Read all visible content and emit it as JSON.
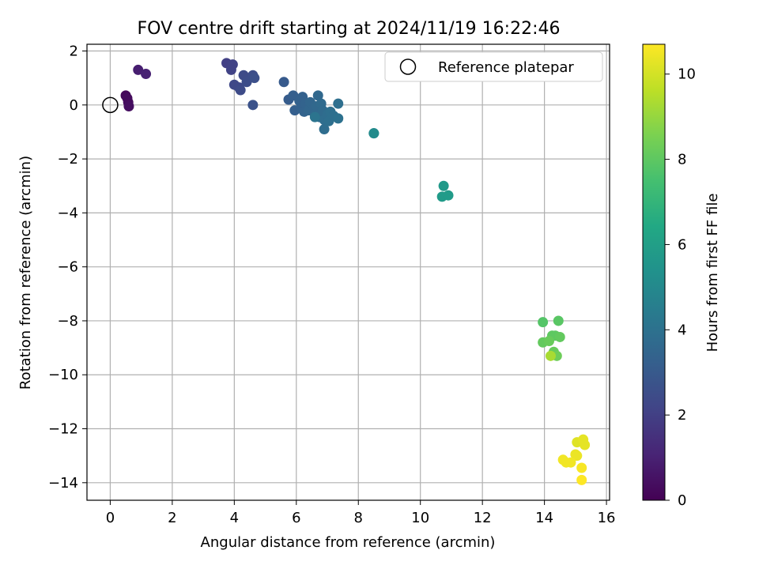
{
  "chart_data": {
    "type": "scatter",
    "title": "FOV centre drift starting at 2024/11/19 16:22:46",
    "xlabel": "Angular distance from reference (arcmin)",
    "ylabel": "Rotation from reference (arcmin)",
    "xlim": [
      -0.75,
      16.1
    ],
    "ylim": [
      -14.65,
      2.25
    ],
    "xticks": [
      0,
      2,
      4,
      6,
      8,
      10,
      12,
      14,
      16
    ],
    "yticks": [
      -14,
      -12,
      -10,
      -8,
      -6,
      -4,
      -2,
      0,
      2
    ],
    "grid": true,
    "legend": {
      "position": "upper-right",
      "entries": [
        "Reference platepar"
      ]
    },
    "reference_point": {
      "x": 0,
      "y": 0,
      "label": "Reference platepar"
    },
    "colorbar": {
      "label": "Hours from first FF file",
      "min": 0,
      "max": 10.7,
      "ticks": [
        0,
        2,
        4,
        6,
        8,
        10
      ],
      "colormap": "viridis"
    },
    "points": [
      {
        "x": 0.5,
        "y": 0.35,
        "c": 0.2
      },
      {
        "x": 0.55,
        "y": 0.25,
        "c": 0.3
      },
      {
        "x": 0.58,
        "y": 0.1,
        "c": 0.3
      },
      {
        "x": 0.6,
        "y": -0.05,
        "c": 0.4
      },
      {
        "x": 0.9,
        "y": 1.3,
        "c": 0.9
      },
      {
        "x": 1.15,
        "y": 1.15,
        "c": 1.0
      },
      {
        "x": 3.75,
        "y": 1.55,
        "c": 2.0
      },
      {
        "x": 3.95,
        "y": 1.5,
        "c": 2.1
      },
      {
        "x": 3.9,
        "y": 1.3,
        "c": 2.1
      },
      {
        "x": 4.0,
        "y": 0.75,
        "c": 2.3
      },
      {
        "x": 4.15,
        "y": 0.65,
        "c": 2.3
      },
      {
        "x": 4.2,
        "y": 0.55,
        "c": 2.4
      },
      {
        "x": 4.3,
        "y": 1.1,
        "c": 2.4
      },
      {
        "x": 4.4,
        "y": 0.85,
        "c": 2.5
      },
      {
        "x": 4.6,
        "y": 1.1,
        "c": 2.5
      },
      {
        "x": 4.65,
        "y": 1.0,
        "c": 2.6
      },
      {
        "x": 4.6,
        "y": 0.0,
        "c": 2.7
      },
      {
        "x": 5.6,
        "y": 0.85,
        "c": 3.0
      },
      {
        "x": 5.75,
        "y": 0.2,
        "c": 3.1
      },
      {
        "x": 5.9,
        "y": 0.35,
        "c": 3.2
      },
      {
        "x": 5.95,
        "y": -0.2,
        "c": 3.2
      },
      {
        "x": 6.1,
        "y": 0.15,
        "c": 3.3
      },
      {
        "x": 6.15,
        "y": -0.1,
        "c": 3.3
      },
      {
        "x": 6.2,
        "y": 0.3,
        "c": 3.3
      },
      {
        "x": 6.25,
        "y": -0.25,
        "c": 3.4
      },
      {
        "x": 6.3,
        "y": 0.05,
        "c": 3.4
      },
      {
        "x": 6.4,
        "y": -0.2,
        "c": 3.5
      },
      {
        "x": 6.45,
        "y": 0.1,
        "c": 3.5
      },
      {
        "x": 6.55,
        "y": -0.15,
        "c": 3.5
      },
      {
        "x": 6.6,
        "y": -0.35,
        "c": 3.6
      },
      {
        "x": 6.65,
        "y": -0.05,
        "c": 3.6
      },
      {
        "x": 6.7,
        "y": 0.35,
        "c": 3.6
      },
      {
        "x": 6.75,
        "y": -0.45,
        "c": 3.7
      },
      {
        "x": 6.8,
        "y": 0.05,
        "c": 3.7
      },
      {
        "x": 6.85,
        "y": -0.2,
        "c": 3.7
      },
      {
        "x": 6.9,
        "y": -0.55,
        "c": 3.8
      },
      {
        "x": 6.9,
        "y": -0.9,
        "c": 3.8
      },
      {
        "x": 7.0,
        "y": -0.35,
        "c": 3.8
      },
      {
        "x": 7.05,
        "y": -0.6,
        "c": 3.9
      },
      {
        "x": 7.1,
        "y": -0.25,
        "c": 3.9
      },
      {
        "x": 7.2,
        "y": -0.4,
        "c": 3.9
      },
      {
        "x": 7.35,
        "y": -0.5,
        "c": 4.0
      },
      {
        "x": 7.35,
        "y": 0.05,
        "c": 3.9
      },
      {
        "x": 6.6,
        "y": -0.45,
        "c": 4.1
      },
      {
        "x": 8.5,
        "y": -1.05,
        "c": 5.0
      },
      {
        "x": 8.5,
        "y": -1.05,
        "c": 5.1
      },
      {
        "x": 10.75,
        "y": -3.0,
        "c": 5.7
      },
      {
        "x": 10.7,
        "y": -3.4,
        "c": 5.8
      },
      {
        "x": 10.9,
        "y": -3.35,
        "c": 5.8
      },
      {
        "x": 13.95,
        "y": -8.05,
        "c": 7.8
      },
      {
        "x": 14.45,
        "y": -8.0,
        "c": 7.9
      },
      {
        "x": 14.25,
        "y": -8.55,
        "c": 8.0
      },
      {
        "x": 14.35,
        "y": -8.55,
        "c": 8.0
      },
      {
        "x": 14.5,
        "y": -8.6,
        "c": 8.1
      },
      {
        "x": 13.95,
        "y": -8.8,
        "c": 8.1
      },
      {
        "x": 14.15,
        "y": -8.75,
        "c": 8.2
      },
      {
        "x": 14.3,
        "y": -9.15,
        "c": 8.2
      },
      {
        "x": 14.4,
        "y": -9.3,
        "c": 8.3
      },
      {
        "x": 14.2,
        "y": -9.3,
        "c": 9.3
      },
      {
        "x": 15.05,
        "y": -12.5,
        "c": 10.2
      },
      {
        "x": 15.25,
        "y": -12.4,
        "c": 10.3
      },
      {
        "x": 15.3,
        "y": -12.6,
        "c": 10.3
      },
      {
        "x": 15.0,
        "y": -12.95,
        "c": 10.4
      },
      {
        "x": 15.05,
        "y": -13.0,
        "c": 10.4
      },
      {
        "x": 14.6,
        "y": -13.15,
        "c": 10.5
      },
      {
        "x": 14.7,
        "y": -13.25,
        "c": 10.5
      },
      {
        "x": 14.85,
        "y": -13.25,
        "c": 10.5
      },
      {
        "x": 15.2,
        "y": -13.45,
        "c": 10.6
      },
      {
        "x": 15.2,
        "y": -13.9,
        "c": 10.7
      }
    ]
  }
}
